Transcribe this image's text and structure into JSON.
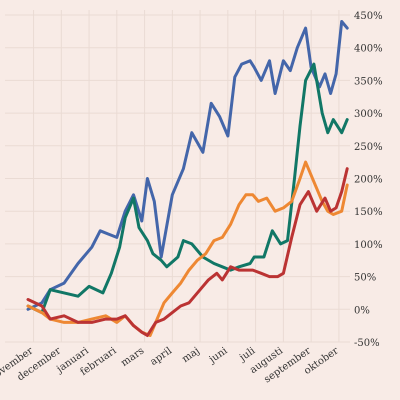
{
  "chart_data": {
    "type": "line",
    "title": "",
    "xlabel": "",
    "ylabel": "",
    "ylim": [
      -50,
      450
    ],
    "xlim": [
      0,
      11.6
    ],
    "y_ticks": [
      -50,
      0,
      50,
      100,
      150,
      200,
      250,
      300,
      350,
      400,
      450
    ],
    "y_tick_labels": [
      "-50%",
      "0%",
      "50%",
      "100%",
      "150%",
      "200%",
      "250%",
      "300%",
      "350%",
      "400%",
      "450%"
    ],
    "y_axis_position": "right",
    "x_ticks": [
      0.2,
      1.2,
      2.2,
      3.2,
      4.2,
      5.2,
      6.2,
      7.2,
      8.2,
      9.2,
      10.2,
      11.2
    ],
    "x_tick_labels": [
      "november",
      "december",
      "januari",
      "februari",
      "mars",
      "april",
      "maj",
      "juni",
      "juli",
      "augusti",
      "september",
      "oktober"
    ],
    "grid": true,
    "legend": "none",
    "series": [
      {
        "color": "#4466aa",
        "x": [
          0,
          0.5,
          0.8,
          1.3,
          1.8,
          2.0,
          2.3,
          2.6,
          2.9,
          3.2,
          3.5,
          3.8,
          4.1,
          4.3,
          4.55,
          4.8,
          5.2,
          5.6,
          5.9,
          6.3,
          6.6,
          6.9,
          7.2,
          7.45,
          7.7,
          8.0,
          8.15,
          8.4,
          8.7,
          8.9,
          9.2,
          9.45,
          9.7,
          10.0,
          10.2,
          10.5,
          10.7,
          10.9,
          11.1,
          11.3,
          11.5
        ],
        "y": [
          0,
          10,
          30,
          40,
          70,
          80,
          95,
          120,
          115,
          110,
          150,
          175,
          135,
          200,
          165,
          80,
          175,
          215,
          270,
          240,
          315,
          295,
          265,
          355,
          375,
          380,
          370,
          350,
          380,
          330,
          380,
          365,
          400,
          430,
          370,
          340,
          360,
          330,
          360,
          440,
          430
        ]
      },
      {
        "color": "#117766",
        "x": [
          0,
          0.5,
          0.8,
          1.3,
          1.8,
          2.2,
          2.7,
          3.0,
          3.3,
          3.5,
          3.8,
          4.0,
          4.3,
          4.5,
          4.8,
          5.0,
          5.4,
          5.6,
          5.9,
          6.3,
          6.7,
          7.0,
          7.3,
          7.6,
          8.0,
          8.15,
          8.5,
          8.8,
          9.1,
          9.35,
          9.6,
          9.8,
          10.0,
          10.3,
          10.6,
          10.8,
          11.0,
          11.3,
          11.5
        ],
        "y": [
          5,
          -5,
          30,
          25,
          20,
          35,
          25,
          55,
          95,
          140,
          170,
          125,
          105,
          85,
          75,
          65,
          80,
          105,
          100,
          80,
          70,
          65,
          60,
          65,
          70,
          80,
          80,
          120,
          100,
          105,
          200,
          280,
          350,
          375,
          300,
          270,
          290,
          270,
          290
        ]
      },
      {
        "color": "#ee8833",
        "x": [
          0,
          0.5,
          0.8,
          1.3,
          1.8,
          2.3,
          2.8,
          3.2,
          3.5,
          3.8,
          4.1,
          4.4,
          4.7,
          4.9,
          5.2,
          5.5,
          5.8,
          6.1,
          6.4,
          6.7,
          7.0,
          7.3,
          7.6,
          7.85,
          8.1,
          8.3,
          8.6,
          8.9,
          9.2,
          9.5,
          9.8,
          10.0,
          10.3,
          10.6,
          10.8,
          11.0,
          11.3,
          11.5
        ],
        "y": [
          5,
          -5,
          -15,
          -20,
          -20,
          -15,
          -10,
          -20,
          -10,
          -25,
          -35,
          -40,
          -10,
          10,
          25,
          40,
          60,
          75,
          85,
          105,
          110,
          130,
          160,
          175,
          175,
          165,
          170,
          150,
          155,
          165,
          200,
          225,
          195,
          165,
          150,
          145,
          150,
          190
        ]
      },
      {
        "color": "#bb3333",
        "x": [
          0,
          0.5,
          0.8,
          1.3,
          1.8,
          2.3,
          2.8,
          3.2,
          3.5,
          3.8,
          4.1,
          4.3,
          4.6,
          4.9,
          5.2,
          5.5,
          5.8,
          6.2,
          6.5,
          6.8,
          7.0,
          7.3,
          7.6,
          7.9,
          8.1,
          8.4,
          8.7,
          9.0,
          9.2,
          9.5,
          9.8,
          10.1,
          10.4,
          10.7,
          10.9,
          11.1,
          11.3,
          11.5
        ],
        "y": [
          15,
          5,
          -15,
          -10,
          -20,
          -20,
          -15,
          -15,
          -10,
          -25,
          -35,
          -40,
          -20,
          -15,
          -5,
          5,
          10,
          30,
          45,
          55,
          45,
          65,
          60,
          60,
          60,
          55,
          50,
          50,
          55,
          110,
          160,
          180,
          150,
          170,
          150,
          155,
          180,
          215
        ]
      }
    ]
  }
}
